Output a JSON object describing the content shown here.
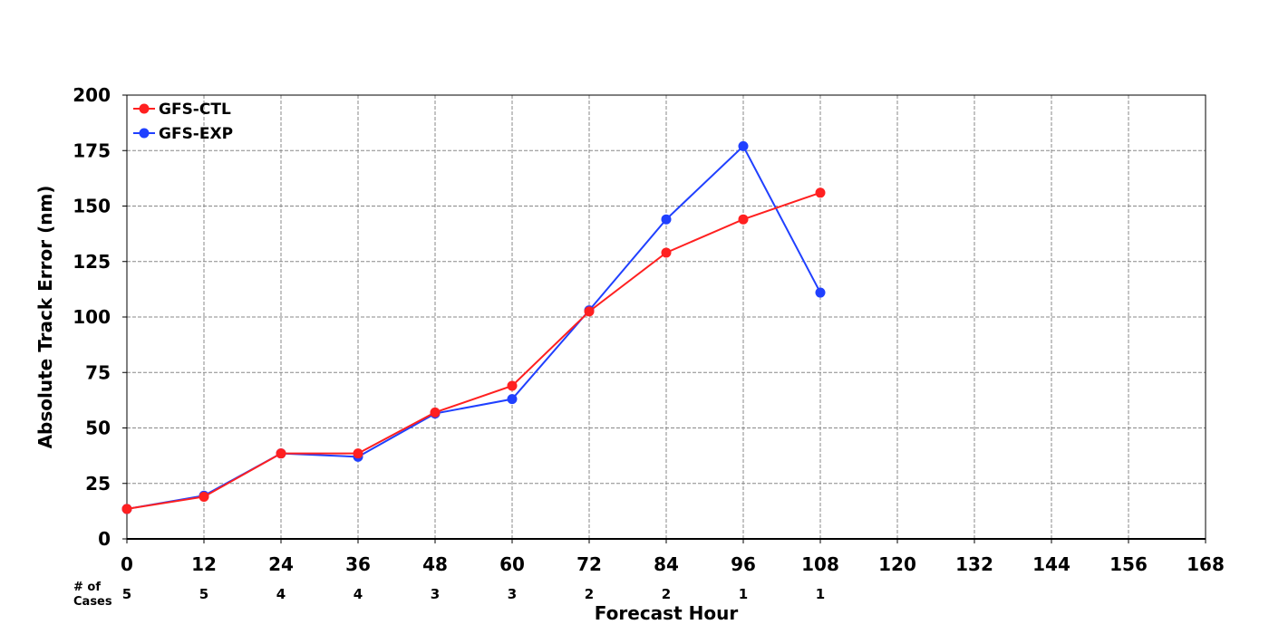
{
  "chart_data": {
    "type": "line",
    "title": "",
    "xlabel": "Forecast Hour",
    "ylabel": "Absolute Track Error (nm)",
    "xlim": [
      0,
      168
    ],
    "ylim": [
      0,
      200
    ],
    "x_ticks": [
      "0",
      "12",
      "24",
      "36",
      "48",
      "60",
      "72",
      "84",
      "96",
      "108",
      "120",
      "132",
      "144",
      "156",
      "168"
    ],
    "y_ticks": [
      "0",
      "25",
      "50",
      "75",
      "100",
      "125",
      "150",
      "175",
      "200"
    ],
    "grid": true,
    "legend_position": "top-left",
    "series": [
      {
        "name": "GFS-CTL",
        "color": "#ff2020",
        "x": [
          0,
          12,
          24,
          36,
          48,
          60,
          72,
          84,
          96,
          108
        ],
        "values": [
          13.5,
          19,
          38.5,
          38.5,
          57,
          69,
          102.5,
          129,
          144,
          156
        ]
      },
      {
        "name": "GFS-EXP",
        "color": "#2040ff",
        "x": [
          0,
          12,
          24,
          36,
          48,
          60,
          72,
          84,
          96,
          108
        ],
        "values": [
          13.5,
          19.5,
          38.5,
          37,
          56.5,
          63,
          103,
          144,
          177,
          111
        ]
      }
    ],
    "cases": {
      "label_line1": "# of",
      "label_line2": "Cases",
      "x": [
        0,
        12,
        24,
        36,
        48,
        60,
        72,
        84,
        96,
        108
      ],
      "values": [
        "5",
        "5",
        "4",
        "4",
        "3",
        "3",
        "2",
        "2",
        "1",
        "1"
      ]
    }
  }
}
